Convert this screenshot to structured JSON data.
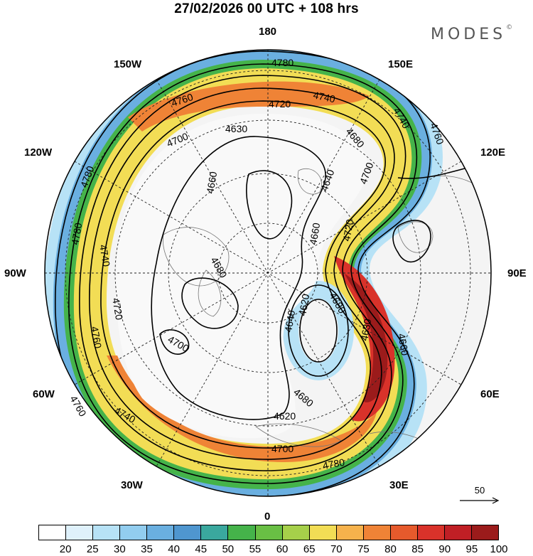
{
  "header": {
    "title": "27/02/2026  00 UTC  + 108 hrs",
    "brand": "MODES",
    "brand_mark": "©"
  },
  "map": {
    "projection": "north-polar-stereographic",
    "longitude_labels": [
      {
        "key": "n",
        "text": "180"
      },
      {
        "key": "ne1",
        "text": "150E"
      },
      {
        "key": "ne2",
        "text": "120E"
      },
      {
        "key": "e",
        "text": "90E"
      },
      {
        "key": "se1",
        "text": "60E"
      },
      {
        "key": "se2",
        "text": "30E"
      },
      {
        "key": "s",
        "text": "0"
      },
      {
        "key": "sw1",
        "text": "30W"
      },
      {
        "key": "sw2",
        "text": "60W"
      },
      {
        "key": "w",
        "text": "90W"
      },
      {
        "key": "nw1",
        "text": "120W"
      },
      {
        "key": "nw2",
        "text": "150W"
      }
    ],
    "contour_labels": [
      "4780",
      "4760",
      "4740",
      "4720",
      "4700",
      "4630",
      "4660",
      "4680",
      "4620",
      "4640",
      "4660",
      "4680",
      "4700",
      "4720",
      "4740",
      "4760",
      "4780",
      "4780",
      "4760",
      "4740",
      "4720",
      "4700",
      "4680",
      "4640",
      "4620",
      "4680",
      "4700",
      "4740",
      "4760",
      "4780",
      "4630",
      "4660"
    ],
    "wind_colors": {
      "jet_core": "#9b1b1b",
      "jet_high": "#d92a25",
      "jet_mid": "#f07a2d",
      "jet_low": "#f5c842",
      "green": "#5cb84f",
      "blue": "#5c9ed6",
      "light_blue": "#a9d6f2",
      "land": "#e8e8e8"
    }
  },
  "colorbar": {
    "labels": [
      "20",
      "25",
      "30",
      "35",
      "40",
      "45",
      "50",
      "55",
      "60",
      "65",
      "70",
      "75",
      "80",
      "85",
      "90",
      "95",
      "100"
    ],
    "colors": [
      "#ffffff",
      "#dff1fb",
      "#b7e2f6",
      "#92cdef",
      "#6aafe0",
      "#4f96cf",
      "#3aa89e",
      "#45b34a",
      "#69bf44",
      "#a6d04a",
      "#f2dd55",
      "#f6b24c",
      "#ef8336",
      "#e65a2c",
      "#d9322a",
      "#c01f25",
      "#9b1b1b"
    ]
  },
  "vector_reference": {
    "label": "50"
  }
}
